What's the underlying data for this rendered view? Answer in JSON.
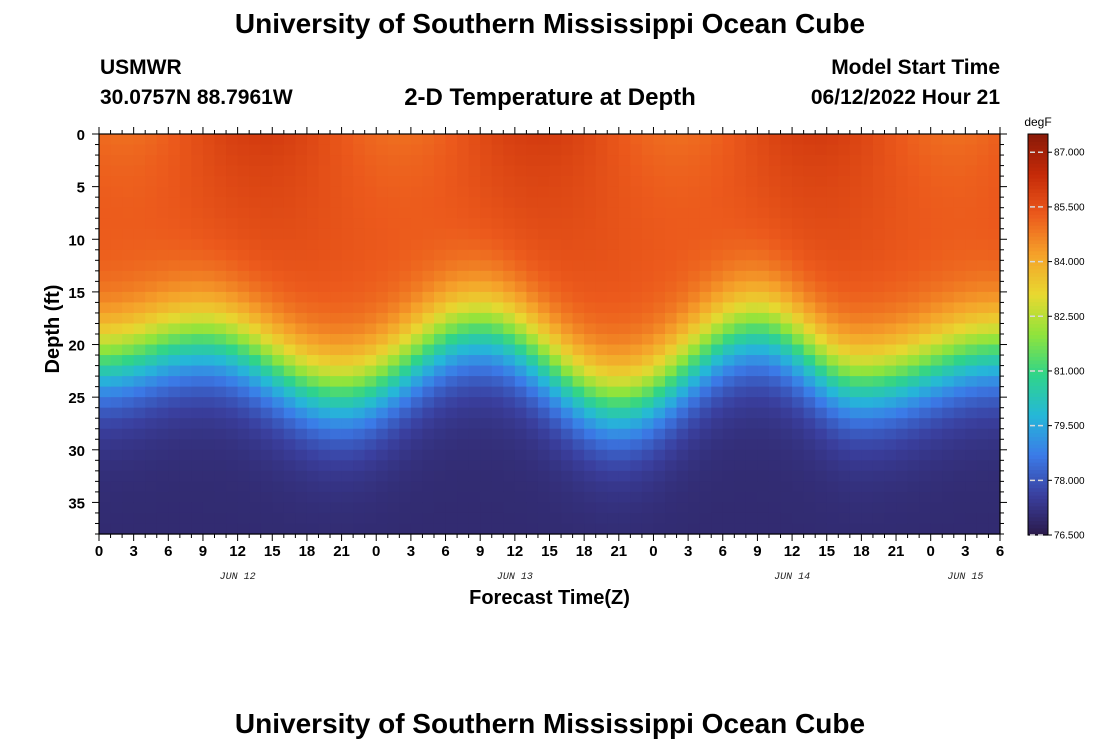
{
  "header": {
    "title": "University of Southern Mississippi Ocean Cube",
    "station": "USMWR",
    "coords": "30.0757N  88.7961W",
    "plot_title": "2-D Temperature at Depth",
    "model_start_label": "Model Start Time",
    "model_start_value": "06/12/2022 Hour 21"
  },
  "footer": {
    "title": "University of Southern Mississippi Ocean Cube"
  },
  "colors": {
    "scale": [
      "#2b1a4a",
      "#3a3f9e",
      "#3b7be8",
      "#25b8d8",
      "#2fd48a",
      "#8fe43c",
      "#e8d830",
      "#f5a22a",
      "#ec5a1c",
      "#c52a08",
      "#8a1a08"
    ]
  },
  "chart_data": {
    "type": "heatmap",
    "title": "2-D Temperature at Depth",
    "xlabel": "Forecast Time(Z)",
    "ylabel": "Depth (ft)",
    "x_tick_labels": [
      "0",
      "3",
      "6",
      "9",
      "12",
      "15",
      "18",
      "21",
      "0",
      "3",
      "6",
      "9",
      "12",
      "15",
      "18",
      "21",
      "0",
      "3",
      "6",
      "9",
      "12",
      "15",
      "18",
      "21",
      "0",
      "3",
      "6"
    ],
    "x_range_hours": [
      0,
      78
    ],
    "date_labels": [
      {
        "label": "JUN 12",
        "hour": 12
      },
      {
        "label": "JUN 13",
        "hour": 36
      },
      {
        "label": "JUN 14",
        "hour": 60
      },
      {
        "label": "JUN 15",
        "hour": 75
      }
    ],
    "y_ticks": [
      0,
      5,
      10,
      15,
      20,
      25,
      30,
      35
    ],
    "y_range": [
      0,
      38
    ],
    "colorbar": {
      "unit": "degF",
      "min": 76.5,
      "max": 87.5,
      "labels": [
        "87.000",
        "85.500",
        "84.000",
        "82.500",
        "81.000",
        "79.500",
        "78.000",
        "76.500"
      ],
      "label_values": [
        87.0,
        85.5,
        84.0,
        82.5,
        81.0,
        79.5,
        78.0,
        76.5
      ]
    },
    "field_description_points": {
      "surface_temp_degF": 85.5,
      "bottom_temp_degF": 77.0,
      "thermocline_depth_ft": [
        {
          "hour": 0,
          "depth": 18
        },
        {
          "hour": 9,
          "depth": 16
        },
        {
          "hour": 21,
          "depth": 21
        },
        {
          "hour": 33,
          "depth": 15
        },
        {
          "hour": 45,
          "depth": 22
        },
        {
          "hour": 57,
          "depth": 15
        },
        {
          "hour": 66,
          "depth": 20
        },
        {
          "hour": 78,
          "depth": 17
        }
      ]
    }
  }
}
